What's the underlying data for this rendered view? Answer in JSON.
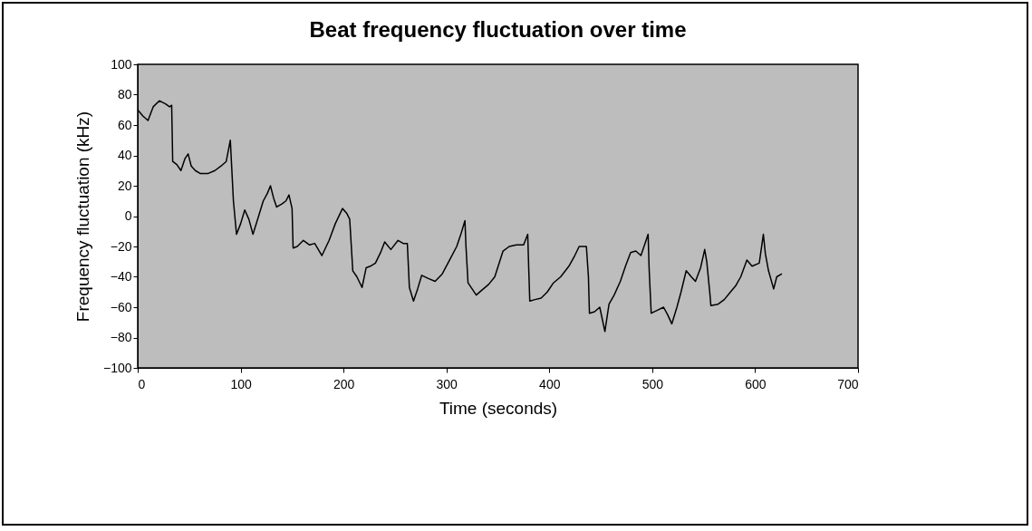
{
  "chart_data": {
    "type": "line",
    "title": "Beat frequency fluctuation over time",
    "xlabel": "Time (seconds)",
    "ylabel": "Frequency fluctuation (kHz)",
    "x": [
      0,
      5,
      10,
      15,
      21,
      27,
      31,
      33,
      34,
      38,
      42,
      46,
      49,
      52,
      56,
      61,
      68,
      75,
      81,
      86,
      90,
      93,
      96,
      100,
      104,
      108,
      112,
      117,
      122,
      126,
      129,
      132,
      135,
      140,
      144,
      147,
      150,
      151,
      155,
      161,
      167,
      172,
      179,
      186,
      192,
      199,
      203,
      206,
      209,
      213,
      218,
      222,
      226,
      231,
      236,
      240,
      246,
      253,
      258,
      262,
      264,
      268,
      272,
      276,
      282,
      289,
      296,
      303,
      310,
      314,
      318,
      319,
      321,
      325,
      329,
      334,
      341,
      347,
      355,
      361,
      368,
      375,
      379,
      380,
      381,
      386,
      392,
      398,
      404,
      411,
      419,
      424,
      429,
      436,
      438,
      439,
      444,
      449,
      454,
      458,
      463,
      469,
      474,
      479,
      484,
      489,
      493,
      496,
      497,
      499,
      505,
      511,
      515,
      519,
      524,
      528,
      533,
      538,
      542,
      547,
      551,
      553,
      556,
      557,
      564,
      570,
      576,
      581,
      586,
      592,
      597,
      604,
      608,
      610,
      613,
      618,
      621,
      626
    ],
    "series": [
      {
        "color": "#000000",
        "values": [
          70,
          66,
          63,
          72,
          76,
          74,
          72,
          73,
          36,
          34,
          30,
          38,
          41,
          33,
          30,
          28,
          28,
          30,
          33,
          36,
          50,
          10,
          -12,
          -5,
          4,
          -2,
          -12,
          -1,
          10,
          15,
          20,
          12,
          6,
          8,
          10,
          14,
          5,
          -21,
          -20,
          -16,
          -19,
          -18,
          -26,
          -16,
          -5,
          5,
          2,
          -2,
          -36,
          -40,
          -47,
          -34,
          -33,
          -31,
          -24,
          -17,
          -22,
          -16,
          -18,
          -18,
          -47,
          -56,
          -48,
          -39,
          -41,
          -43,
          -38,
          -29,
          -20,
          -12,
          -3,
          -20,
          -44,
          -48,
          -52,
          -49,
          -45,
          -40,
          -23,
          -20,
          -19,
          -19,
          -12,
          -35,
          -56,
          -55,
          -54,
          -50,
          -44,
          -40,
          -33,
          -27,
          -20,
          -20,
          -40,
          -64,
          -63,
          -60,
          -76,
          -58,
          -52,
          -43,
          -33,
          -24,
          -23,
          -26,
          -18,
          -12,
          -35,
          -64,
          -62,
          -60,
          -65,
          -71,
          -60,
          -50,
          -36,
          -40,
          -43,
          -34,
          -22,
          -30,
          -51,
          -59,
          -58,
          -55,
          -50,
          -46,
          -40,
          -29,
          -33,
          -31,
          -12,
          -25,
          -36,
          -48,
          -40,
          -38
        ]
      }
    ],
    "xlim": [
      0,
      700
    ],
    "xticks": [
      0,
      100,
      200,
      300,
      400,
      500,
      600,
      700
    ],
    "ylim": [
      -100,
      100
    ],
    "yticks": [
      -100,
      -80,
      -60,
      -40,
      -20,
      0,
      20,
      40,
      60,
      80,
      100
    ],
    "grid": false,
    "legend": false
  }
}
